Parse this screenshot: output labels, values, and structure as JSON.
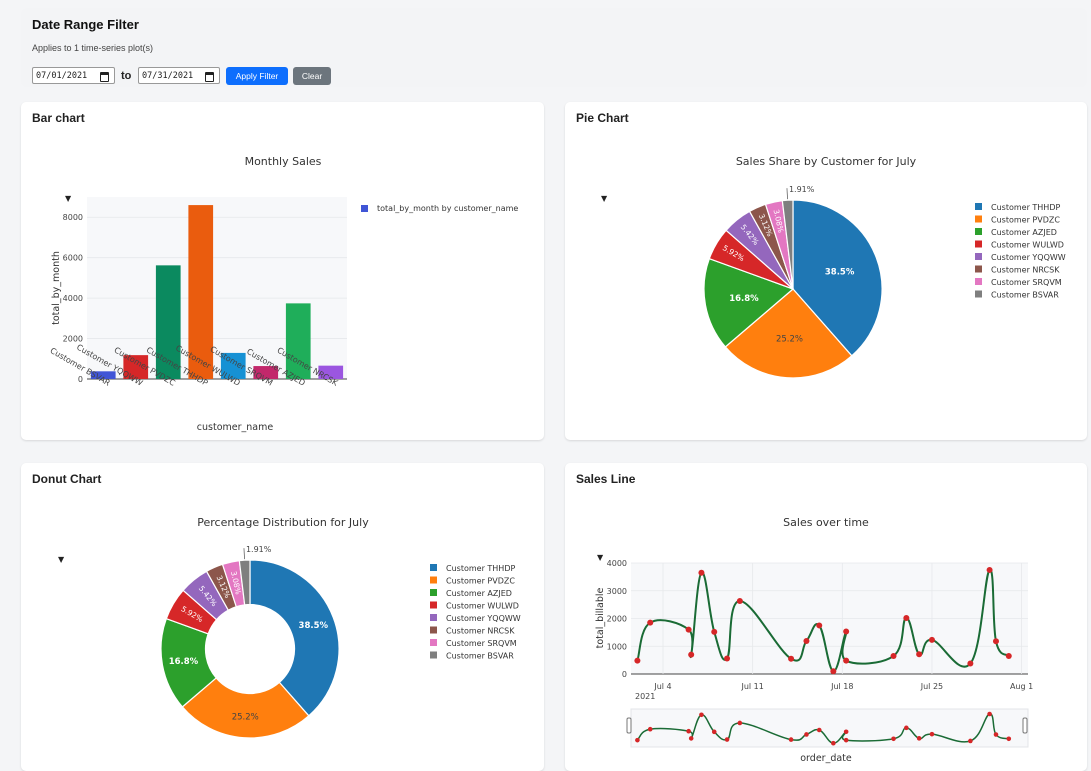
{
  "filter": {
    "title": "Date Range Filter",
    "subtitle": "Applies to 1 time-series plot(s)",
    "from_date": "07/01/2021",
    "to_label": "to",
    "to_date": "07/31/2021",
    "apply_label": "Apply Filter",
    "clear_label": "Clear"
  },
  "cards": {
    "bar": {
      "header": "Bar chart",
      "menu": "▼"
    },
    "pie": {
      "header": "Pie Chart",
      "menu": "▼"
    },
    "donut": {
      "header": "Donut Chart",
      "menu": "▼"
    },
    "line": {
      "header": "Sales Line",
      "menu": "▼"
    }
  },
  "chart_data": [
    {
      "type": "bar",
      "title": "Monthly Sales",
      "xlabel": "customer_name",
      "ylabel": "total_by_month",
      "legend": "total_by_month by customer_name",
      "legend_position": "top-right",
      "ylim": [
        0,
        9000
      ],
      "yticks": [
        0,
        2000,
        4000,
        6000,
        8000
      ],
      "ytick_labels": [
        "0",
        "2000",
        "4000",
        "6000",
        "8000"
      ],
      "categories": [
        "Customer BSVAR",
        "Customer YQQWW",
        "Customer PVDZC",
        "Customer THHDP",
        "Customer WULWD",
        "Customer SRQVM",
        "Customer AZJED",
        "Customer NRCSK"
      ],
      "values": [
        380,
        1180,
        5620,
        8600,
        1290,
        640,
        3740,
        660
      ],
      "colors": [
        "#4055d6",
        "#d62728",
        "#0b8a5f",
        "#ea5c0e",
        "#1691d4",
        "#c2286b",
        "#1fae5a",
        "#9b56e0"
      ]
    },
    {
      "type": "pie",
      "title": "Sales Share by Customer for July",
      "labels": [
        "Customer THHDP",
        "Customer PVDZC",
        "Customer AZJED",
        "Customer WULWD",
        "Customer YQQWW",
        "Customer NRCSK",
        "Customer SRQVM",
        "Customer BSVAR"
      ],
      "values": [
        38.5,
        25.2,
        16.8,
        5.92,
        5.42,
        3.12,
        3.08,
        1.91
      ],
      "value_labels": [
        "38.5%",
        "25.2%",
        "16.8%",
        "5.92%",
        "5.42%",
        "3.12%",
        "3.08%",
        "1.91%"
      ],
      "colors": [
        "#1f77b4",
        "#ff7f0e",
        "#2ca02c",
        "#d62728",
        "#9467bd",
        "#8c564b",
        "#e377c2",
        "#7f7f7f"
      ],
      "legend_position": "right"
    },
    {
      "type": "pie",
      "hole": true,
      "title": "Percentage Distribution for July",
      "labels": [
        "Customer THHDP",
        "Customer PVDZC",
        "Customer AZJED",
        "Customer WULWD",
        "Customer YQQWW",
        "Customer NRCSK",
        "Customer SRQVM",
        "Customer BSVAR"
      ],
      "values": [
        38.5,
        25.2,
        16.8,
        5.92,
        5.42,
        3.12,
        3.08,
        1.91
      ],
      "value_labels": [
        "38.5%",
        "25.2%",
        "16.8%",
        "5.92%",
        "5.42%",
        "3.12%",
        "3.08%",
        "1.91%"
      ],
      "colors": [
        "#1f77b4",
        "#ff7f0e",
        "#2ca02c",
        "#d62728",
        "#9467bd",
        "#8c564b",
        "#e377c2",
        "#7f7f7f"
      ],
      "legend_position": "right"
    },
    {
      "type": "line",
      "title": "Sales over time",
      "xlabel": "order_date",
      "ylabel": "total_billable",
      "ylim": [
        0,
        4000
      ],
      "yticks": [
        0,
        1000,
        2000,
        3000,
        4000
      ],
      "ytick_labels": [
        "0",
        "1000",
        "2000",
        "3000",
        "4000"
      ],
      "xlim": [
        1.5,
        32.5
      ],
      "xticks": [
        4,
        11,
        18,
        25,
        32
      ],
      "xtick_labels": [
        "Jul 4",
        "Jul 11",
        "Jul 18",
        "Jul 25",
        "Aug 1"
      ],
      "xtick_sublabel": "2021",
      "line_color": "#1a6b35",
      "marker_color": "#d62728",
      "range_slider": true,
      "x": [
        2,
        3,
        6,
        6.2,
        7,
        8,
        9,
        10,
        14,
        15.2,
        16.2,
        17.3,
        18.3,
        18.3,
        22,
        23,
        24,
        25,
        28,
        29.5,
        30,
        31
      ],
      "y": [
        480,
        1850,
        1600,
        700,
        3650,
        1520,
        560,
        2630,
        550,
        1190,
        1750,
        100,
        1530,
        480,
        650,
        2020,
        710,
        1230,
        380,
        3750,
        1180,
        650
      ]
    }
  ]
}
